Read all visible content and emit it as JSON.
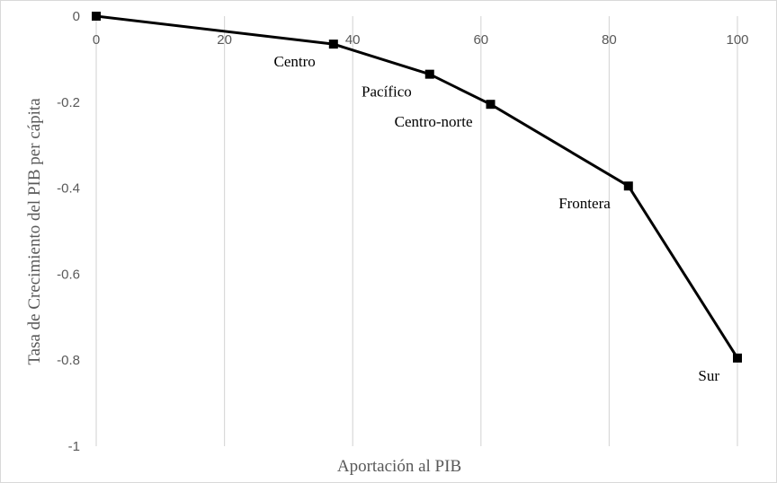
{
  "chart_data": {
    "type": "line",
    "title": "",
    "xlabel": "Aportación al PIB",
    "ylabel": "Tasa de Crecimiento del PIB per cápita",
    "xlim": [
      0,
      100
    ],
    "ylim": [
      -1,
      0
    ],
    "xticks": [
      0,
      20,
      40,
      60,
      80,
      100
    ],
    "yticks": [
      0,
      -0.2,
      -0.4,
      -0.6,
      -0.8,
      -1
    ],
    "xtick_labels": [
      "0",
      "20",
      "40",
      "60",
      "80",
      "100"
    ],
    "ytick_labels": [
      "0",
      "-0.2",
      "-0.4",
      "-0.6",
      "-0.8",
      "-1"
    ],
    "grid": {
      "vertical": true,
      "horizontal": false
    },
    "legend": "none",
    "line_color": "#000000",
    "grid_color": "#d9d9d9",
    "marker": "square",
    "points": [
      {
        "x": 0,
        "y": 0,
        "label": ""
      },
      {
        "x": 37,
        "y": -0.065,
        "label": "Centro"
      },
      {
        "x": 52,
        "y": -0.135,
        "label": "Pacífico"
      },
      {
        "x": 61.5,
        "y": -0.205,
        "label": "Centro-norte"
      },
      {
        "x": 83,
        "y": -0.395,
        "label": "Frontera"
      },
      {
        "x": 100,
        "y": -0.795,
        "label": "Sur"
      }
    ]
  }
}
